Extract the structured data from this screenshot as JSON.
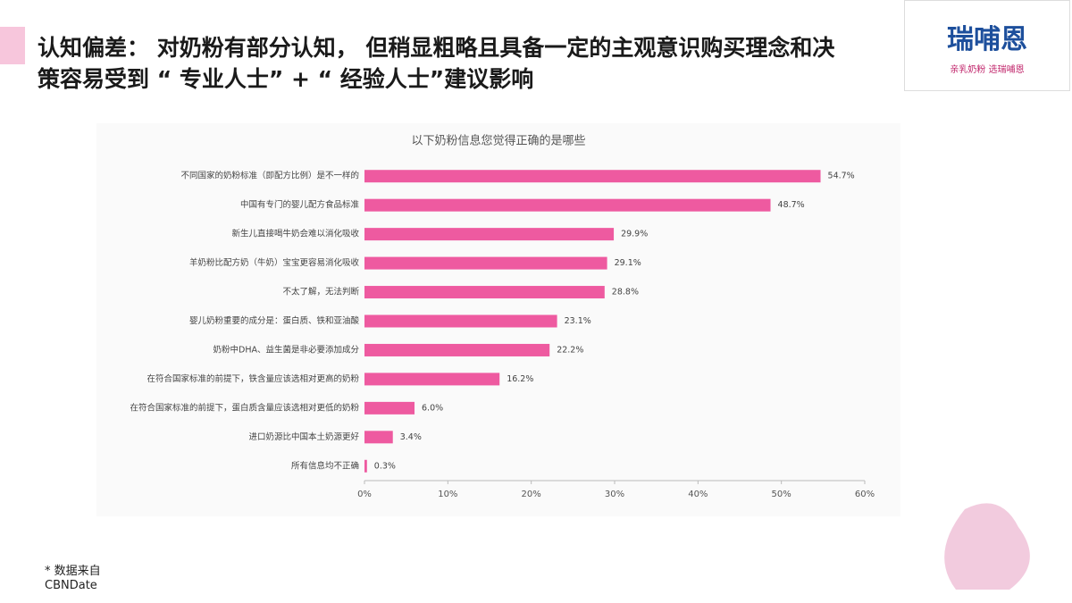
{
  "header": {
    "title": "认知偏差： 对奶粉有部分认知， 但稍显粗略且具备一定的主观意识购买理念和决策容易受到 “ 专业人士” + “ 经验人士”建议影响"
  },
  "logo": {
    "name": "瑞哺恩",
    "slogan": "亲乳奶粉 选瑞哺恩"
  },
  "chart_data": {
    "type": "hbar",
    "title": "以下奶粉信息您觉得正确的是哪些",
    "categories": [
      "不同国家的奶粉标准（即配方比例）是不一样的",
      "中国有专门的婴儿配方食品标准",
      "新生儿直接喝牛奶会难以消化吸收",
      "羊奶粉比配方奶（牛奶）宝宝更容易消化吸收",
      "不太了解，无法判断",
      "婴儿奶粉重要的成分是：蛋白质、铁和亚油酸",
      "奶粉中DHA、益生菌是非必要添加成分",
      "在符合国家标准的前提下，铁含量应该选相对更高的奶粉",
      "在符合国家标准的前提下，蛋白质含量应该选相对更低的奶粉",
      "进口奶源比中国本土奶源更好",
      "所有信息均不正确"
    ],
    "values": [
      54.7,
      48.7,
      29.9,
      29.1,
      28.8,
      23.1,
      22.2,
      16.2,
      6.0,
      3.4,
      0.3
    ],
    "value_labels": [
      "54.7%",
      "48.7%",
      "29.9%",
      "29.1%",
      "28.8%",
      "23.1%",
      "22.2%",
      "16.2%",
      "6.0%",
      "3.4%",
      "0.3%"
    ],
    "color": "#ee5aa0",
    "xlim": [
      0,
      60
    ],
    "xticks": [
      {
        "value": 0,
        "label": "0%"
      },
      {
        "value": 10,
        "label": "10%"
      },
      {
        "value": 20,
        "label": "20%"
      },
      {
        "value": 30,
        "label": "30%"
      },
      {
        "value": 40,
        "label": "40%"
      },
      {
        "value": 50,
        "label": "50%"
      },
      {
        "value": 60,
        "label": "60%"
      }
    ]
  },
  "footnote": {
    "lines": [
      "* 数据来自",
      "CBNDate"
    ]
  }
}
